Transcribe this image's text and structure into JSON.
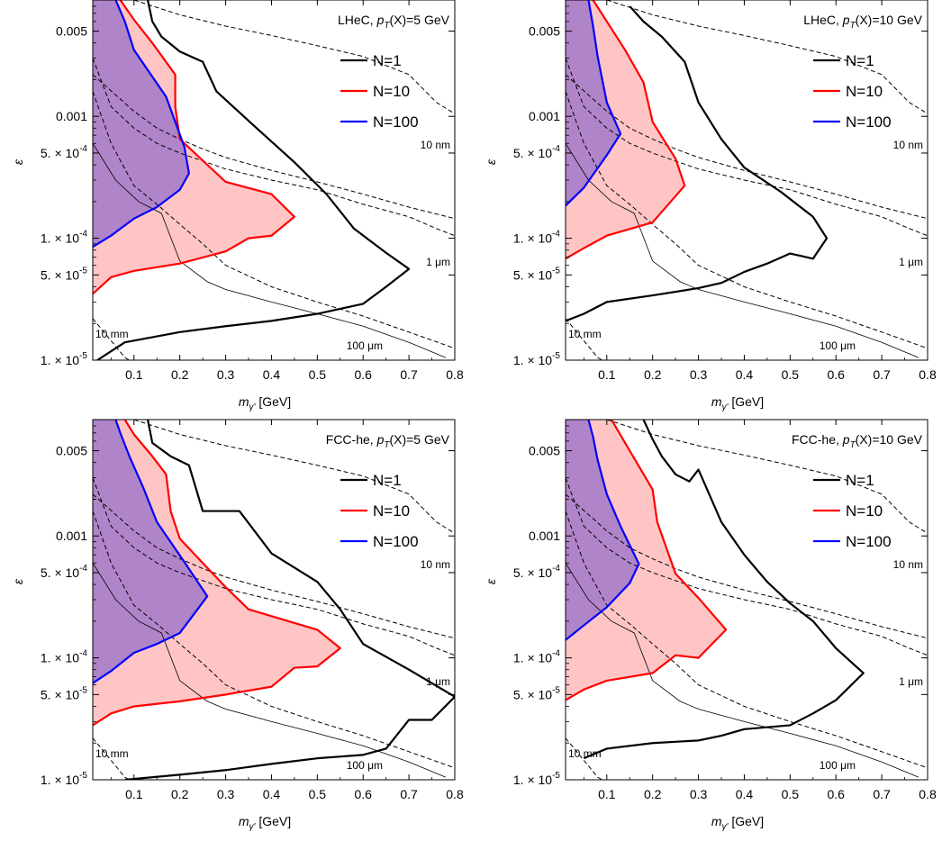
{
  "chart_data": [
    {
      "type": "line",
      "title": "LHeC, p_T(X)=5 GeV",
      "title_parts": {
        "collider": "LHeC",
        "p_var": "p",
        "p_sub": "T",
        "p_rest": "(X)=5 GeV"
      },
      "xlabel": {
        "base": "m",
        "sub": "γ'",
        "unit": "[GeV]"
      },
      "ylabel": "ε",
      "xlim": [
        0.01,
        0.8
      ],
      "ylim": [
        1e-05,
        0.009
      ],
      "y_scale": "log",
      "xticks": [
        0.1,
        0.2,
        0.3,
        0.4,
        0.5,
        0.6,
        0.7,
        0.8
      ],
      "yticks": [
        {
          "value": 1e-05,
          "label_mant": "1.",
          "label_exp": "-5"
        },
        {
          "value": 5e-05,
          "label_mant": "5.",
          "label_exp": "-5"
        },
        {
          "value": 0.0001,
          "label_mant": "1.",
          "label_exp": "-4"
        },
        {
          "value": 0.0005,
          "label_mant": "5.",
          "label_exp": "-4"
        },
        {
          "value": 0.001,
          "label": "0.001"
        },
        {
          "value": 0.005,
          "label": "0.005"
        }
      ],
      "legend": {
        "placement": "top-right",
        "entries": [
          "N=1",
          "N=10",
          "N=100"
        ]
      },
      "series": [
        {
          "name": "N=1",
          "color": "#000000",
          "points": [
            [
              0.02,
              1e-05
            ],
            [
              0.08,
              1.4e-05
            ],
            [
              0.2,
              1.7e-05
            ],
            [
              0.3,
              1.9e-05
            ],
            [
              0.4,
              2.1e-05
            ],
            [
              0.5,
              2.4e-05
            ],
            [
              0.6,
              2.9e-05
            ],
            [
              0.65,
              4e-05
            ],
            [
              0.7,
              5.6e-05
            ],
            [
              0.65,
              7.6e-05
            ],
            [
              0.58,
              0.00012
            ],
            [
              0.52,
              0.00023
            ],
            [
              0.45,
              0.00042
            ],
            [
              0.36,
              0.00085
            ],
            [
              0.28,
              0.0016
            ],
            [
              0.25,
              0.0028
            ],
            [
              0.2,
              0.0034
            ],
            [
              0.16,
              0.0045
            ],
            [
              0.14,
              0.006
            ],
            [
              0.13,
              0.009
            ]
          ]
        },
        {
          "name": "N=10",
          "color": "#ff0000",
          "points": [
            [
              0.01,
              3.5e-05
            ],
            [
              0.05,
              4.8e-05
            ],
            [
              0.1,
              5.4e-05
            ],
            [
              0.2,
              6.2e-05
            ],
            [
              0.3,
              7.8e-05
            ],
            [
              0.35,
              0.0001
            ],
            [
              0.4,
              0.000105
            ],
            [
              0.45,
              0.00015
            ],
            [
              0.4,
              0.00023
            ],
            [
              0.3,
              0.00029
            ],
            [
              0.2,
              0.00065
            ],
            [
              0.19,
              0.0012
            ],
            [
              0.19,
              0.0022
            ],
            [
              0.14,
              0.004
            ],
            [
              0.1,
              0.0062
            ],
            [
              0.07,
              0.009
            ]
          ]
        },
        {
          "name": "N=100",
          "color": "#0000ff",
          "points": [
            [
              0.01,
              8.5e-05
            ],
            [
              0.05,
              0.000105
            ],
            [
              0.1,
              0.000145
            ],
            [
              0.15,
              0.00018
            ],
            [
              0.2,
              0.00025
            ],
            [
              0.22,
              0.00034
            ],
            [
              0.21,
              0.00056
            ],
            [
              0.17,
              0.00145
            ],
            [
              0.1,
              0.0035
            ],
            [
              0.08,
              0.006
            ],
            [
              0.06,
              0.009
            ]
          ]
        }
      ],
      "dashed_labels": [
        "10 nm",
        "1 μm",
        "100 μm",
        "10 mm"
      ]
    },
    {
      "type": "line",
      "title": "LHeC, p_T(X)=10 GeV",
      "title_parts": {
        "collider": "LHeC",
        "p_var": "p",
        "p_sub": "T",
        "p_rest": "(X)=10 GeV"
      },
      "xlabel": {
        "base": "m",
        "sub": "γ'",
        "unit": "[GeV]"
      },
      "ylabel": "ε",
      "xlim": [
        0.01,
        0.8
      ],
      "ylim": [
        1e-05,
        0.009
      ],
      "y_scale": "log",
      "xticks": [
        0.1,
        0.2,
        0.3,
        0.4,
        0.5,
        0.6,
        0.7,
        0.8
      ],
      "yticks": [
        {
          "value": 1e-05,
          "label_mant": "1.",
          "label_exp": "-5"
        },
        {
          "value": 5e-05,
          "label_mant": "5.",
          "label_exp": "-5"
        },
        {
          "value": 0.0001,
          "label_mant": "1.",
          "label_exp": "-4"
        },
        {
          "value": 0.0005,
          "label_mant": "5.",
          "label_exp": "-4"
        },
        {
          "value": 0.001,
          "label": "0.001"
        },
        {
          "value": 0.005,
          "label": "0.005"
        }
      ],
      "legend": {
        "placement": "top-right",
        "entries": [
          "N=1",
          "N=10",
          "N=100"
        ]
      },
      "series": [
        {
          "name": "N=1",
          "color": "#000000",
          "points": [
            [
              0.01,
              2.1e-05
            ],
            [
              0.05,
              2.4e-05
            ],
            [
              0.1,
              3e-05
            ],
            [
              0.2,
              3.4e-05
            ],
            [
              0.3,
              3.9e-05
            ],
            [
              0.35,
              4.3e-05
            ],
            [
              0.4,
              5.3e-05
            ],
            [
              0.45,
              6.2e-05
            ],
            [
              0.5,
              7.5e-05
            ],
            [
              0.55,
              6.8e-05
            ],
            [
              0.58,
              0.0001
            ],
            [
              0.55,
              0.00015
            ],
            [
              0.48,
              0.00024
            ],
            [
              0.4,
              0.00038
            ],
            [
              0.35,
              0.00065
            ],
            [
              0.3,
              0.0013
            ],
            [
              0.27,
              0.0028
            ],
            [
              0.22,
              0.0045
            ],
            [
              0.18,
              0.006
            ],
            [
              0.15,
              0.008
            ]
          ]
        },
        {
          "name": "N=10",
          "color": "#ff0000",
          "points": [
            [
              0.01,
              6.8e-05
            ],
            [
              0.05,
              8.3e-05
            ],
            [
              0.1,
              0.000105
            ],
            [
              0.2,
              0.000135
            ],
            [
              0.27,
              0.00027
            ],
            [
              0.25,
              0.00045
            ],
            [
              0.2,
              0.0009
            ],
            [
              0.18,
              0.0019
            ],
            [
              0.14,
              0.0035
            ],
            [
              0.1,
              0.006
            ],
            [
              0.07,
              0.009
            ]
          ]
        },
        {
          "name": "N=100",
          "color": "#0000ff",
          "points": [
            [
              0.01,
              0.000185
            ],
            [
              0.05,
              0.00026
            ],
            [
              0.1,
              0.00048
            ],
            [
              0.13,
              0.00072
            ],
            [
              0.1,
              0.0013
            ],
            [
              0.08,
              0.0031
            ],
            [
              0.07,
              0.0055
            ],
            [
              0.06,
              0.009
            ]
          ]
        }
      ],
      "dashed_labels": [
        "10 nm",
        "1 μm",
        "100 μm",
        "10 mm"
      ]
    },
    {
      "type": "line",
      "title": "FCC-he, p_T(X)=5 GeV",
      "title_parts": {
        "collider": "FCC-he",
        "p_var": "p",
        "p_sub": "T",
        "p_rest": "(X)=5 GeV"
      },
      "xlabel": {
        "base": "m",
        "sub": "γ'",
        "unit": "[GeV]"
      },
      "ylabel": "ε",
      "xlim": [
        0.01,
        0.8
      ],
      "ylim": [
        1e-05,
        0.009
      ],
      "y_scale": "log",
      "xticks": [
        0.1,
        0.2,
        0.3,
        0.4,
        0.5,
        0.6,
        0.7,
        0.8
      ],
      "yticks": [
        {
          "value": 1e-05,
          "label_mant": "1.",
          "label_exp": "-5"
        },
        {
          "value": 5e-05,
          "label_mant": "5.",
          "label_exp": "-5"
        },
        {
          "value": 0.0001,
          "label_mant": "1.",
          "label_exp": "-4"
        },
        {
          "value": 0.0005,
          "label_mant": "5.",
          "label_exp": "-4"
        },
        {
          "value": 0.001,
          "label": "0.001"
        },
        {
          "value": 0.005,
          "label": "0.005"
        }
      ],
      "legend": {
        "placement": "top-right",
        "entries": [
          "N=1",
          "N=10",
          "N=100"
        ]
      },
      "series": [
        {
          "name": "N=1",
          "color": "#000000",
          "points": [
            [
              0.08,
              1e-05
            ],
            [
              0.2,
              1.1e-05
            ],
            [
              0.3,
              1.2e-05
            ],
            [
              0.4,
              1.35e-05
            ],
            [
              0.5,
              1.5e-05
            ],
            [
              0.6,
              1.6e-05
            ],
            [
              0.65,
              1.8e-05
            ],
            [
              0.7,
              3.1e-05
            ],
            [
              0.75,
              3.1e-05
            ],
            [
              0.8,
              4.8e-05
            ],
            [
              0.7,
              8e-05
            ],
            [
              0.6,
              0.00013
            ],
            [
              0.55,
              0.00025
            ],
            [
              0.5,
              0.00042
            ],
            [
              0.4,
              0.00072
            ],
            [
              0.33,
              0.0016
            ],
            [
              0.25,
              0.0016
            ],
            [
              0.22,
              0.0038
            ],
            [
              0.18,
              0.0045
            ],
            [
              0.14,
              0.0058
            ],
            [
              0.13,
              0.009
            ]
          ]
        },
        {
          "name": "N=10",
          "color": "#ff0000",
          "points": [
            [
              0.01,
              2.8e-05
            ],
            [
              0.05,
              3.5e-05
            ],
            [
              0.1,
              4e-05
            ],
            [
              0.2,
              4.4e-05
            ],
            [
              0.3,
              5e-05
            ],
            [
              0.4,
              5.8e-05
            ],
            [
              0.45,
              8.3e-05
            ],
            [
              0.5,
              8.5e-05
            ],
            [
              0.55,
              0.00012
            ],
            [
              0.5,
              0.00017
            ],
            [
              0.35,
              0.00025
            ],
            [
              0.3,
              0.00038
            ],
            [
              0.25,
              0.0006
            ],
            [
              0.2,
              0.00095
            ],
            [
              0.18,
              0.0016
            ],
            [
              0.17,
              0.0032
            ],
            [
              0.14,
              0.0045
            ],
            [
              0.1,
              0.0068
            ],
            [
              0.08,
              0.009
            ]
          ]
        },
        {
          "name": "N=100",
          "color": "#0000ff",
          "points": [
            [
              0.01,
              6.2e-05
            ],
            [
              0.05,
              7.8e-05
            ],
            [
              0.1,
              0.00011
            ],
            [
              0.15,
              0.00013
            ],
            [
              0.2,
              0.00016
            ],
            [
              0.26,
              0.00032
            ],
            [
              0.21,
              0.00061
            ],
            [
              0.15,
              0.0013
            ],
            [
              0.12,
              0.0025
            ],
            [
              0.09,
              0.0045
            ],
            [
              0.07,
              0.007
            ],
            [
              0.06,
              0.009
            ]
          ]
        }
      ],
      "dashed_labels": [
        "10 nm",
        "1 μm",
        "100 μm",
        "10 mm"
      ]
    },
    {
      "type": "line",
      "title": "FCC-he, p_T(X)=10 GeV",
      "title_parts": {
        "collider": "FCC-he",
        "p_var": "p",
        "p_sub": "T",
        "p_rest": "(X)=10 GeV"
      },
      "xlabel": {
        "base": "m",
        "sub": "γ'",
        "unit": "[GeV]"
      },
      "ylabel": "ε",
      "xlim": [
        0.01,
        0.8
      ],
      "ylim": [
        1e-05,
        0.009
      ],
      "y_scale": "log",
      "xticks": [
        0.1,
        0.2,
        0.3,
        0.4,
        0.5,
        0.6,
        0.7,
        0.8
      ],
      "yticks": [
        {
          "value": 1e-05,
          "label_mant": "1.",
          "label_exp": "-5"
        },
        {
          "value": 5e-05,
          "label_mant": "5.",
          "label_exp": "-5"
        },
        {
          "value": 0.0001,
          "label_mant": "1.",
          "label_exp": "-4"
        },
        {
          "value": 0.0005,
          "label_mant": "5.",
          "label_exp": "-4"
        },
        {
          "value": 0.001,
          "label": "0.001"
        },
        {
          "value": 0.005,
          "label": "0.005"
        }
      ],
      "legend": {
        "placement": "top-right",
        "entries": [
          "N=1",
          "N=10",
          "N=100"
        ]
      },
      "series": [
        {
          "name": "N=1",
          "color": "#000000",
          "points": [
            [
              0.05,
              1.5e-05
            ],
            [
              0.1,
              1.8e-05
            ],
            [
              0.2,
              2e-05
            ],
            [
              0.3,
              2.1e-05
            ],
            [
              0.35,
              2.3e-05
            ],
            [
              0.4,
              2.6e-05
            ],
            [
              0.5,
              2.8e-05
            ],
            [
              0.55,
              3.5e-05
            ],
            [
              0.6,
              4.5e-05
            ],
            [
              0.66,
              7.5e-05
            ],
            [
              0.6,
              0.00012
            ],
            [
              0.55,
              0.0002
            ],
            [
              0.5,
              0.00028
            ],
            [
              0.45,
              0.00042
            ],
            [
              0.4,
              0.0007
            ],
            [
              0.35,
              0.0013
            ],
            [
              0.3,
              0.0035
            ],
            [
              0.28,
              0.0028
            ],
            [
              0.25,
              0.0032
            ],
            [
              0.22,
              0.0045
            ],
            [
              0.2,
              0.0062
            ],
            [
              0.18,
              0.009
            ]
          ]
        },
        {
          "name": "N=10",
          "color": "#ff0000",
          "points": [
            [
              0.01,
              4.5e-05
            ],
            [
              0.05,
              5.5e-05
            ],
            [
              0.1,
              6.5e-05
            ],
            [
              0.2,
              7.5e-05
            ],
            [
              0.25,
              0.000105
            ],
            [
              0.3,
              0.0001
            ],
            [
              0.36,
              0.00017
            ],
            [
              0.3,
              0.00031
            ],
            [
              0.25,
              0.00049
            ],
            [
              0.21,
              0.0013
            ],
            [
              0.2,
              0.0024
            ],
            [
              0.15,
              0.005
            ],
            [
              0.11,
              0.009
            ]
          ]
        },
        {
          "name": "N=100",
          "color": "#0000ff",
          "points": [
            [
              0.01,
              0.00014
            ],
            [
              0.05,
              0.000185
            ],
            [
              0.1,
              0.00026
            ],
            [
              0.15,
              0.00041
            ],
            [
              0.17,
              0.00059
            ],
            [
              0.13,
              0.0012
            ],
            [
              0.1,
              0.0022
            ],
            [
              0.08,
              0.0042
            ],
            [
              0.07,
              0.0065
            ],
            [
              0.06,
              0.009
            ]
          ]
        }
      ],
      "dashed_labels": [
        "10 nm",
        "1 μm",
        "100 μm",
        "10 mm"
      ]
    }
  ]
}
